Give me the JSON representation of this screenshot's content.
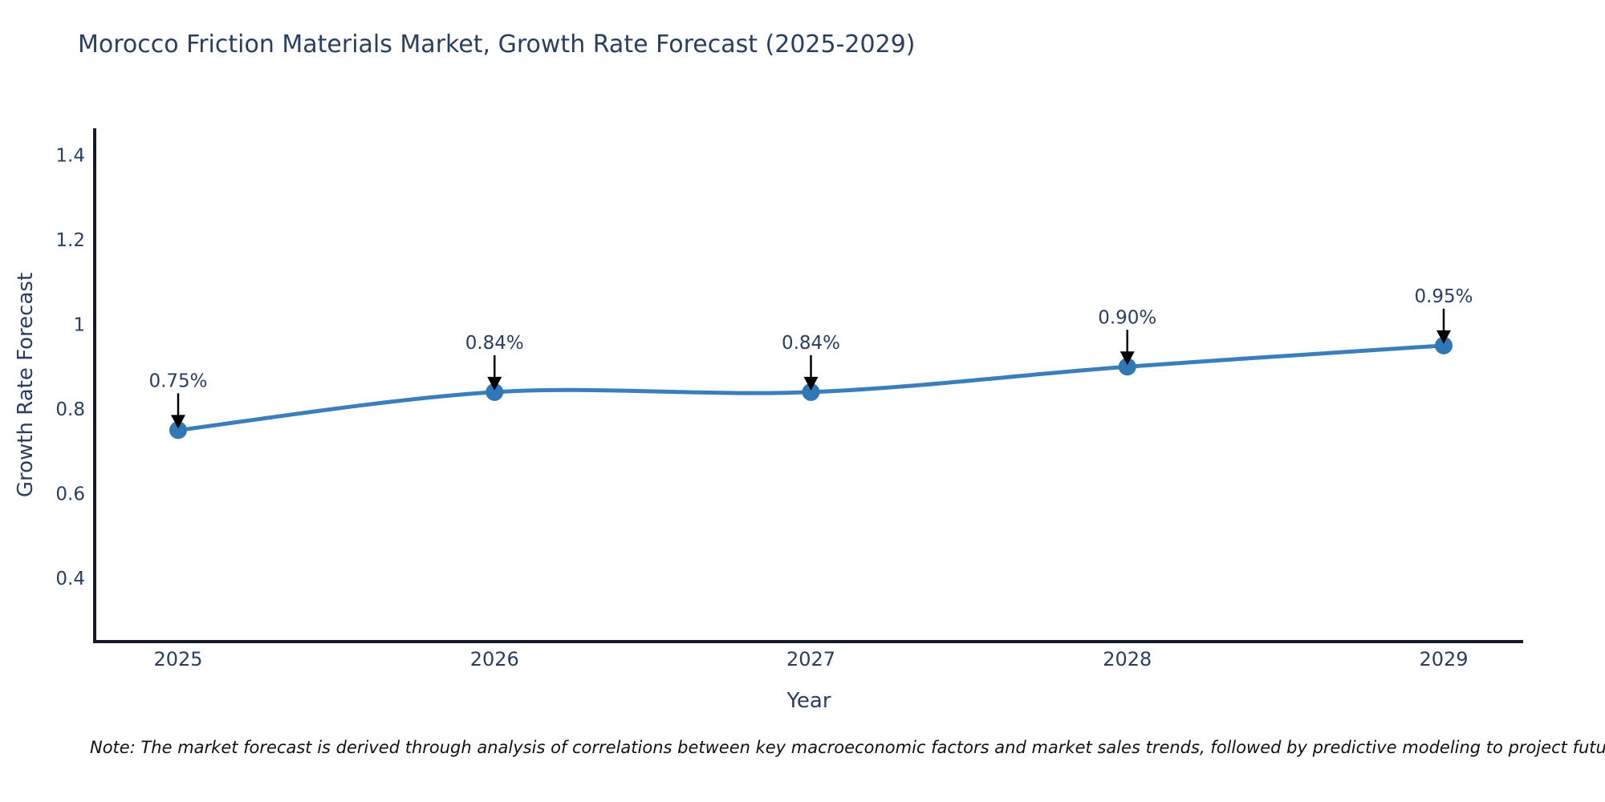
{
  "title": "Morocco Friction Materials Market, Growth Rate Forecast (2025-2029)",
  "note": "Note: The market forecast is derived through analysis of correlations between key macroeconomic factors and market sales trends, followed by predictive modeling to project future sales",
  "chart_data": {
    "type": "line",
    "title": "Morocco Friction Materials Market, Growth Rate Forecast (2025-2029)",
    "x": [
      2025,
      2026,
      2027,
      2028,
      2029
    ],
    "categories": [
      "2025",
      "2026",
      "2027",
      "2028",
      "2029"
    ],
    "series": [
      {
        "name": "Growth Rate Forecast",
        "values": [
          0.75,
          0.84,
          0.84,
          0.9,
          0.95
        ],
        "point_labels": [
          "0.75%",
          "0.84%",
          "0.84%",
          "0.90%",
          "0.95%"
        ]
      }
    ],
    "xlabel": "Year",
    "ylabel": "Growth Rate Forecast",
    "yticks": [
      0.4,
      0.6,
      0.8,
      1,
      1.2,
      1.4
    ],
    "ytick_labels": [
      "0.4",
      "0.6",
      "0.8",
      "1",
      "1.2",
      "1.4"
    ],
    "ylim": [
      0.25,
      1.46
    ],
    "grid": false,
    "legend_position": "none",
    "line_shape": "spline",
    "colors": {
      "line": "#3a7ebb",
      "marker": "#2f77b5",
      "axis": "#161a28",
      "tick_label": "#2a3f5f",
      "point_label": "#2a3f5f",
      "annotation_arrow": "#000000",
      "title": "#2a3f5f"
    }
  }
}
